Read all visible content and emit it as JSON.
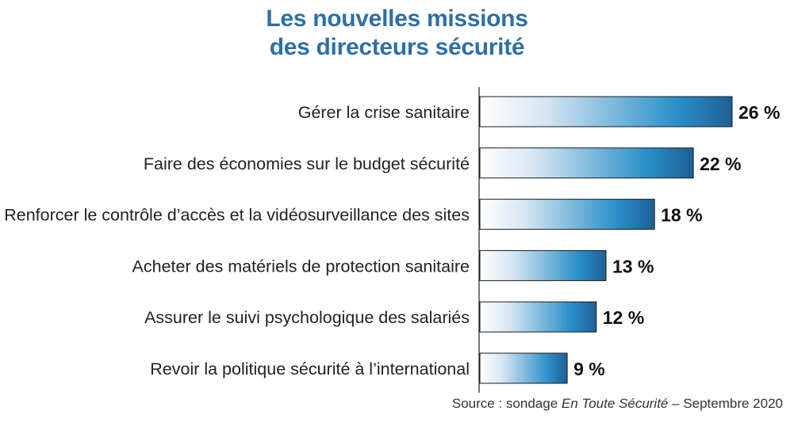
{
  "title": {
    "line1": "Les nouvelles missions",
    "line2": "des directeurs sécurité"
  },
  "source": {
    "prefix": "Source : sondage ",
    "publication": "En Toute Sécurité",
    "suffix": " – Septembre 2020"
  },
  "colors": {
    "title": "#2e6fa6",
    "bar_light": "#ffffff",
    "bar_mid": "#2a90c9",
    "bar_dark": "#1f5f96",
    "axis": "#222222"
  },
  "chart_data": {
    "type": "bar",
    "orientation": "horizontal",
    "categories": [
      "Gérer la crise sanitaire",
      "Faire des économies sur le budget sécurité",
      "Renforcer le contrôle d’accès et la vidéosurveillance des sites",
      "Acheter des matériels de protection sanitaire",
      "Assurer le suivi psychologique des salariés",
      "Revoir la politique sécurité à l’international"
    ],
    "values": [
      26,
      22,
      18,
      13,
      12,
      9
    ],
    "value_labels": [
      "26 %",
      "22 %",
      "18 %",
      "13 %",
      "12 %",
      "9 %"
    ],
    "xlim": [
      0,
      26
    ],
    "grid": false,
    "legend": "none"
  }
}
